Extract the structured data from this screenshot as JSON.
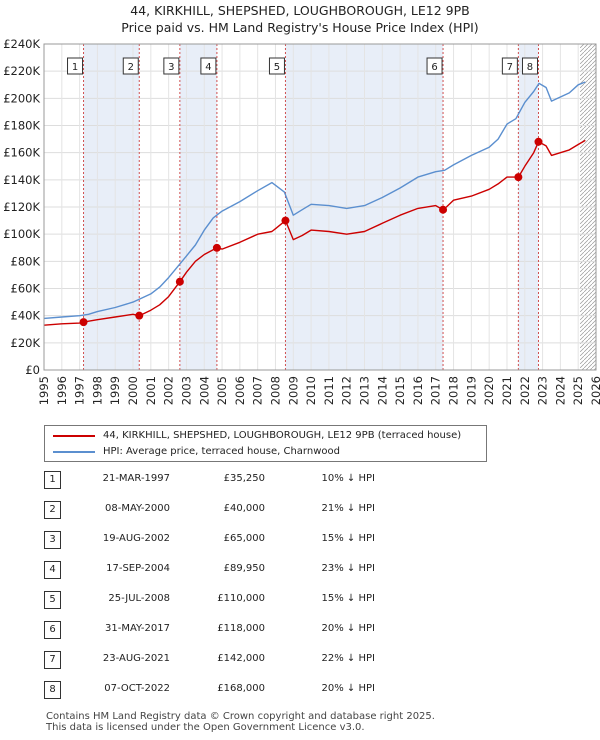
{
  "title_line1": "44, KIRKHILL, SHEPSHED, LOUGHBOROUGH, LE12 9PB",
  "title_line2": "Price paid vs. HM Land Registry's House Price Index (HPI)",
  "colors": {
    "price": "#cc0000",
    "hpi": "#5b8fcf",
    "shade": "#e8eef8",
    "marker_line": "#d05050"
  },
  "legend": {
    "price_label": "44, KIRKHILL, SHEPSHED, LOUGHBOROUGH, LE12 9PB (terraced house)",
    "hpi_label": "HPI: Average price, terraced house, Charnwood"
  },
  "chart_data": {
    "type": "line",
    "xlim": [
      1995,
      2026
    ],
    "ylim": [
      0,
      240000
    ],
    "y_ticks": [
      0,
      20000,
      40000,
      60000,
      80000,
      100000,
      120000,
      140000,
      160000,
      180000,
      200000,
      220000,
      240000
    ],
    "y_tick_labels": [
      "£0",
      "£20K",
      "£40K",
      "£60K",
      "£80K",
      "£100K",
      "£120K",
      "£140K",
      "£160K",
      "£180K",
      "£200K",
      "£220K",
      "£240K"
    ],
    "x_ticks": [
      1995,
      1996,
      1997,
      1998,
      1999,
      2000,
      2001,
      2002,
      2003,
      2004,
      2005,
      2006,
      2007,
      2008,
      2009,
      2010,
      2011,
      2012,
      2013,
      2014,
      2015,
      2016,
      2017,
      2018,
      2019,
      2020,
      2021,
      2022,
      2023,
      2024,
      2025,
      2026
    ],
    "series": [
      {
        "name": "HPI: Average price, terraced house, Charnwood",
        "x": [
          1995.0,
          1996.0,
          1997.0,
          1997.5,
          1998.0,
          1999.0,
          2000.0,
          2000.5,
          2001.0,
          2001.5,
          2002.0,
          2002.5,
          2003.0,
          2003.5,
          2004.0,
          2004.5,
          2005.0,
          2006.0,
          2007.0,
          2007.8,
          2008.5,
          2009.0,
          2009.5,
          2010.0,
          2011.0,
          2012.0,
          2013.0,
          2014.0,
          2015.0,
          2016.0,
          2017.0,
          2017.5,
          2018.0,
          2019.0,
          2020.0,
          2020.5,
          2021.0,
          2021.5,
          2022.0,
          2022.5,
          2022.8,
          2023.2,
          2023.5,
          2024.0,
          2024.5,
          2025.0,
          2025.4
        ],
        "values": [
          38000,
          39000,
          40000,
          41000,
          43000,
          46000,
          50000,
          53000,
          56000,
          61000,
          68000,
          76000,
          84000,
          92000,
          103000,
          112000,
          117000,
          124000,
          132000,
          138000,
          131000,
          114000,
          118000,
          122000,
          121000,
          119000,
          121000,
          127000,
          134000,
          142000,
          146000,
          147000,
          151000,
          158000,
          164000,
          170000,
          181000,
          185000,
          197000,
          205000,
          211000,
          208000,
          198000,
          201000,
          204000,
          210000,
          212000
        ]
      },
      {
        "name": "44, KIRKHILL, SHEPSHED, LOUGHBOROUGH, LE12 9PB (terraced house)",
        "x": [
          1995.0,
          1996.0,
          1997.0,
          1997.22,
          1998.0,
          1999.0,
          2000.0,
          2000.35,
          2001.0,
          2001.5,
          2002.0,
          2002.63,
          2003.0,
          2003.5,
          2004.0,
          2004.71,
          2005.0,
          2006.0,
          2007.0,
          2007.8,
          2008.0,
          2008.56,
          2009.0,
          2009.5,
          2010.0,
          2011.0,
          2012.0,
          2013.0,
          2014.0,
          2015.0,
          2016.0,
          2017.0,
          2017.41,
          2017.6,
          2018.0,
          2019.0,
          2020.0,
          2020.5,
          2021.0,
          2021.64,
          2022.0,
          2022.5,
          2022.77,
          2023.2,
          2023.5,
          2024.0,
          2024.5,
          2025.0,
          2025.4
        ],
        "values": [
          33000,
          34000,
          34500,
          35250,
          37000,
          39000,
          41000,
          40000,
          44000,
          48000,
          54000,
          65000,
          72000,
          80000,
          85000,
          89950,
          89000,
          94000,
          100000,
          102000,
          104000,
          110000,
          96000,
          99000,
          103000,
          102000,
          100000,
          102000,
          108000,
          114000,
          119000,
          121000,
          118000,
          120000,
          125000,
          128000,
          133000,
          137000,
          142000,
          142000,
          150000,
          160000,
          168000,
          165000,
          158000,
          160000,
          162000,
          166000,
          169000
        ]
      }
    ],
    "sales": [
      {
        "label": "1",
        "x": 1997.22,
        "price": 35250
      },
      {
        "label": "2",
        "x": 2000.35,
        "price": 40000
      },
      {
        "label": "3",
        "x": 2002.63,
        "price": 65000
      },
      {
        "label": "4",
        "x": 2004.71,
        "price": 89950
      },
      {
        "label": "5",
        "x": 2008.56,
        "price": 110000
      },
      {
        "label": "6",
        "x": 2017.41,
        "price": 118000
      },
      {
        "label": "7",
        "x": 2021.64,
        "price": 142000
      },
      {
        "label": "8",
        "x": 2022.77,
        "price": 168000
      }
    ],
    "shaded_spans": [
      [
        1997.22,
        2000.35
      ],
      [
        2002.63,
        2004.71
      ],
      [
        2008.56,
        2017.41
      ],
      [
        2021.64,
        2022.77
      ]
    ],
    "hatched_from": 2025.1
  },
  "table": [
    {
      "num": "1",
      "date": "21-MAR-1997",
      "price": "£35,250",
      "hpi": "10% ↓ HPI"
    },
    {
      "num": "2",
      "date": "08-MAY-2000",
      "price": "£40,000",
      "hpi": "21% ↓ HPI"
    },
    {
      "num": "3",
      "date": "19-AUG-2002",
      "price": "£65,000",
      "hpi": "15% ↓ HPI"
    },
    {
      "num": "4",
      "date": "17-SEP-2004",
      "price": "£89,950",
      "hpi": "23% ↓ HPI"
    },
    {
      "num": "5",
      "date": "25-JUL-2008",
      "price": "£110,000",
      "hpi": "15% ↓ HPI"
    },
    {
      "num": "6",
      "date": "31-MAY-2017",
      "price": "£118,000",
      "hpi": "20% ↓ HPI"
    },
    {
      "num": "7",
      "date": "23-AUG-2021",
      "price": "£142,000",
      "hpi": "22% ↓ HPI"
    },
    {
      "num": "8",
      "date": "07-OCT-2022",
      "price": "£168,000",
      "hpi": "20% ↓ HPI"
    }
  ],
  "footer_line1": "Contains HM Land Registry data © Crown copyright and database right 2025.",
  "footer_line2": "This data is licensed under the Open Government Licence v3.0."
}
